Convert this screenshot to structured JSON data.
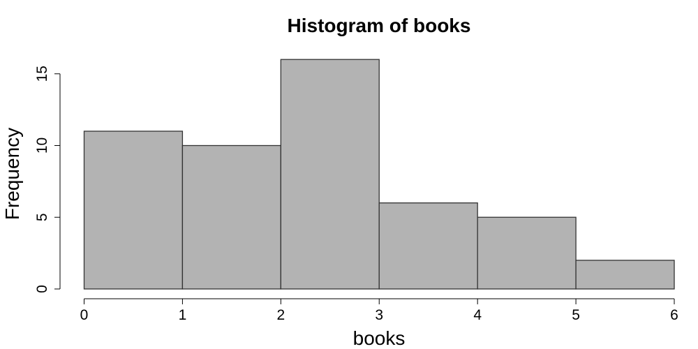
{
  "chart_data": {
    "type": "bar",
    "title": "Histogram of books",
    "xlabel": "books",
    "ylabel": "Frequency",
    "bin_edges": [
      0,
      1,
      2,
      3,
      4,
      5,
      6
    ],
    "values": [
      11,
      10,
      16,
      6,
      5,
      2
    ],
    "x_ticks": [
      0,
      1,
      2,
      3,
      4,
      5,
      6
    ],
    "y_ticks": [
      0,
      5,
      10,
      15
    ],
    "xlim": [
      0,
      6
    ],
    "ylim": [
      0,
      16
    ],
    "bar_color": "#b3b3b3",
    "grid": false,
    "legend": "none"
  }
}
